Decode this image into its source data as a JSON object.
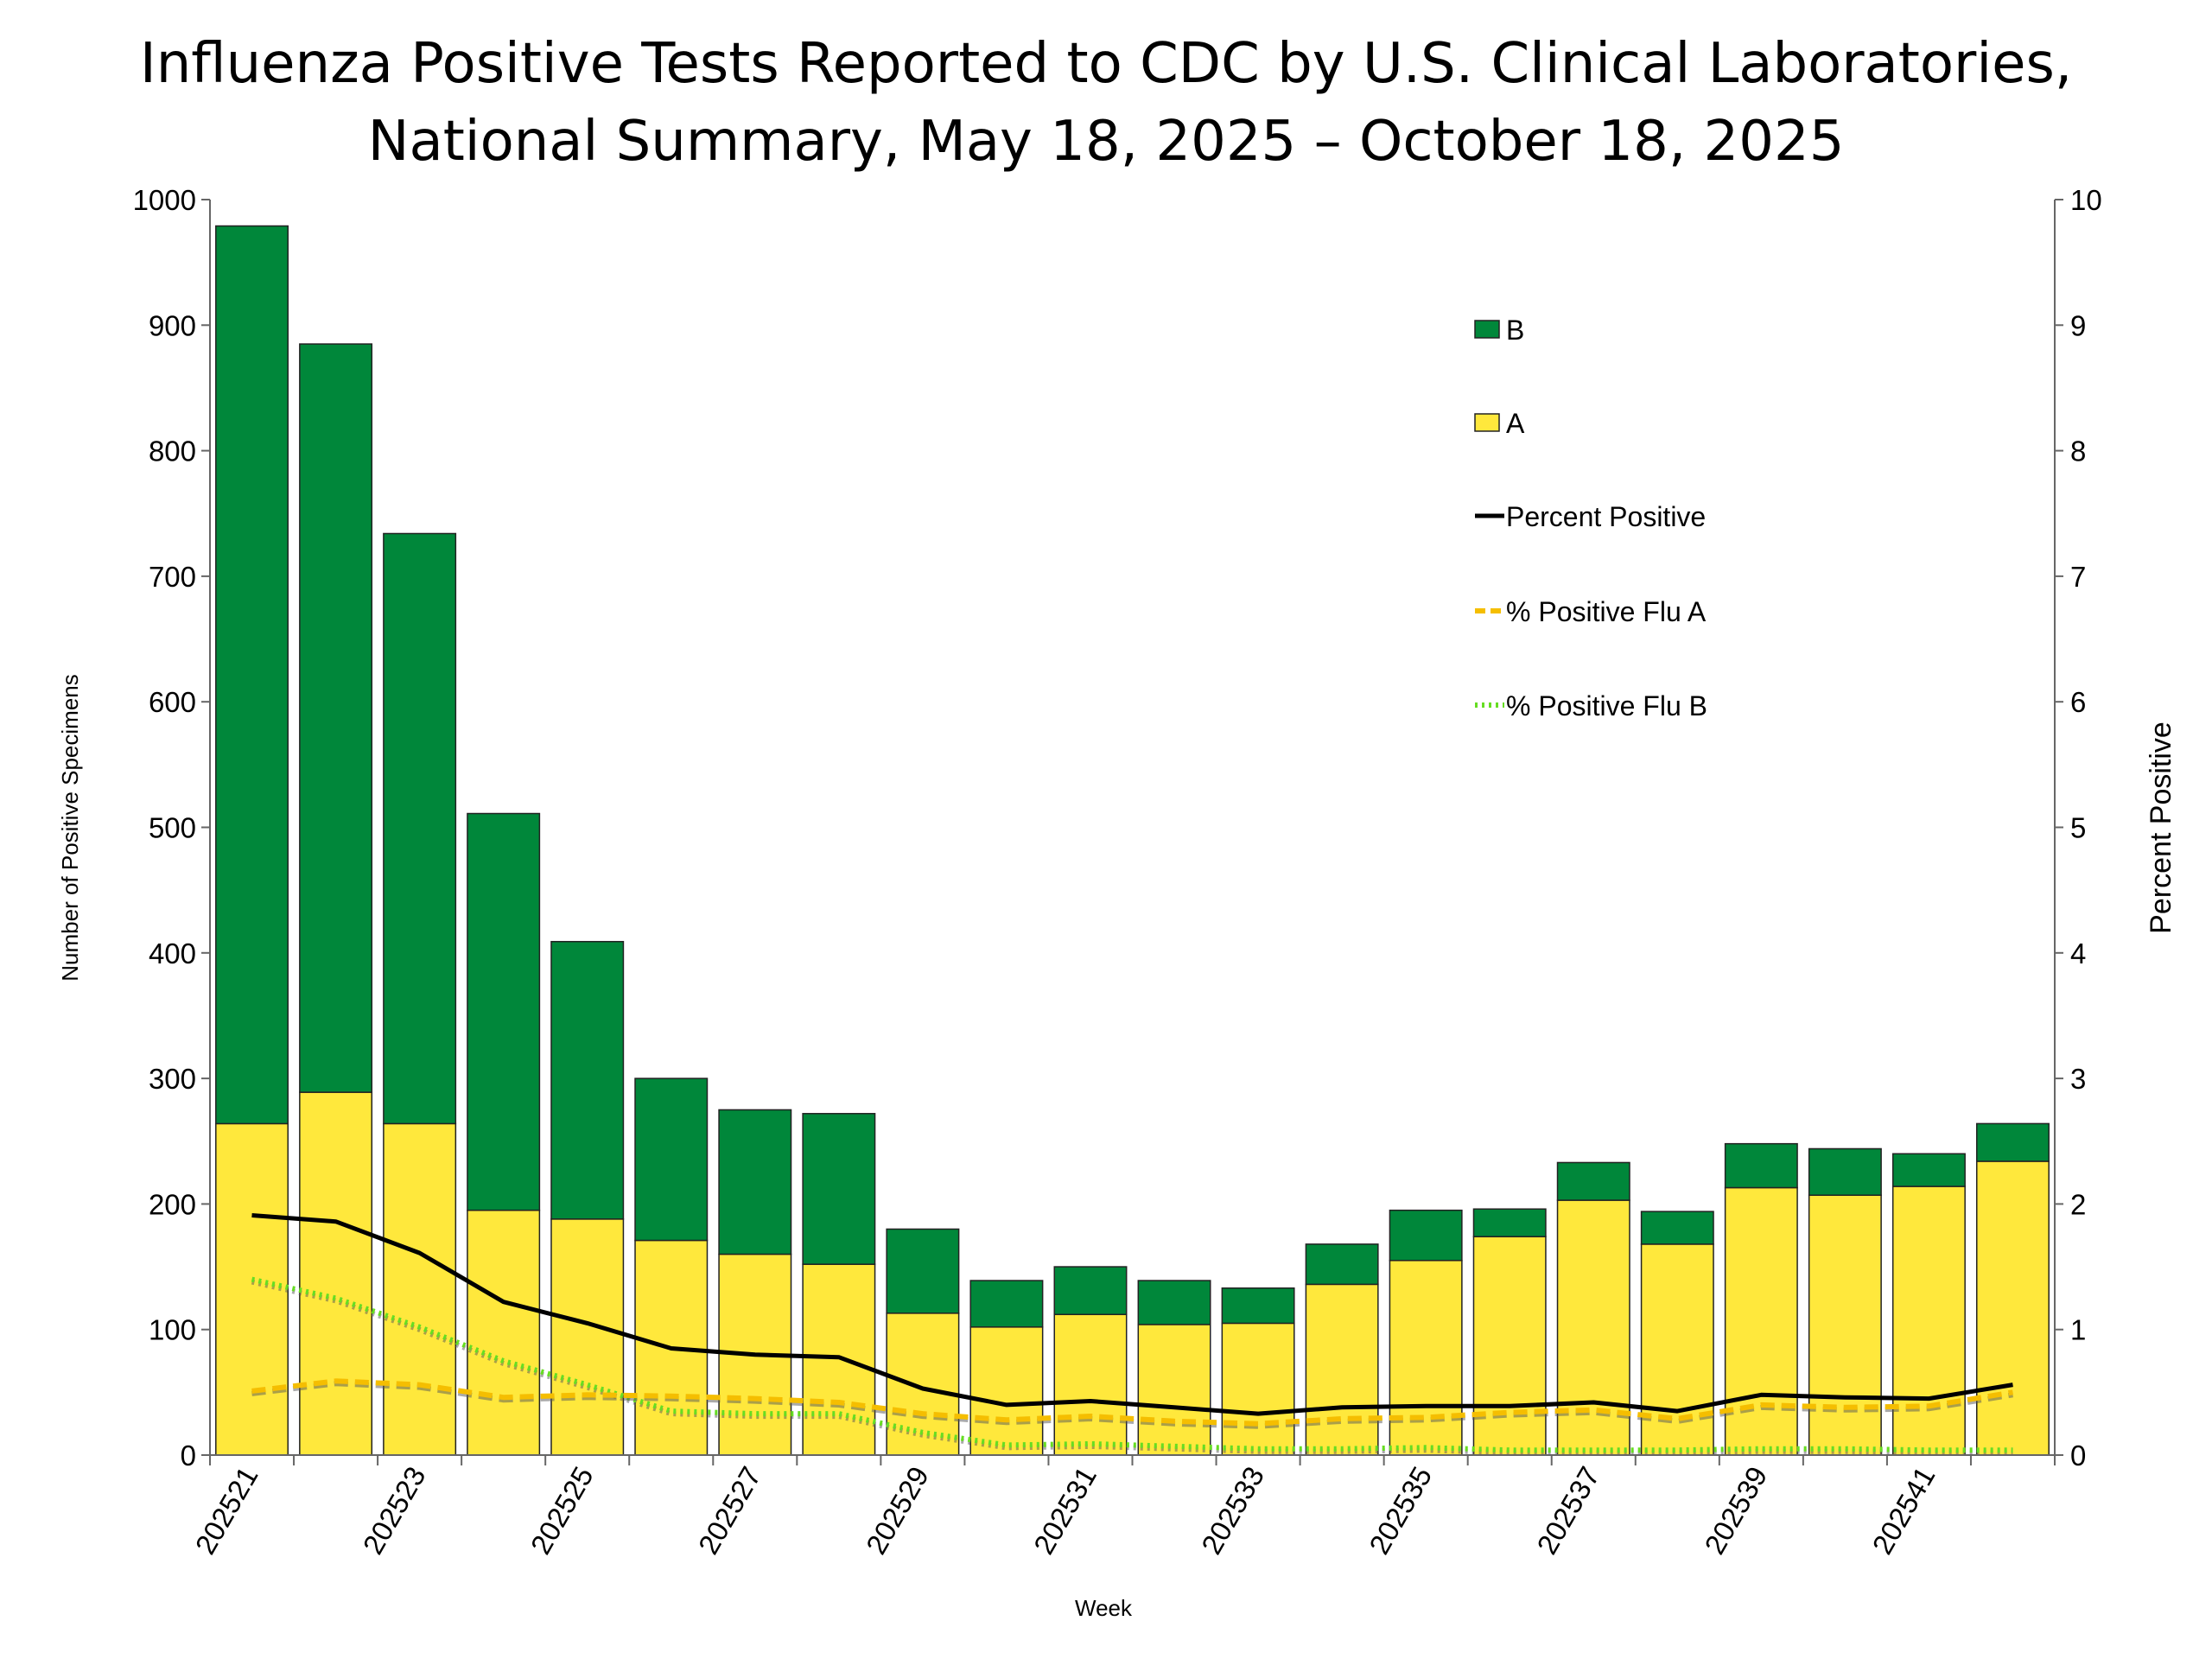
{
  "chart_data": {
    "type": "bar",
    "title": [
      "Influenza Positive Tests Reported to CDC by U.S. Clinical Laboratories,",
      "National Summary, May 18, 2025 – October 18, 2025"
    ],
    "xlabel": "Week",
    "ylabel": "Number of Positive Specimens",
    "y2label": "Percent Positive",
    "ylim": [
      0,
      1000
    ],
    "y2lim": [
      0,
      10
    ],
    "yticks": [
      0,
      100,
      200,
      300,
      400,
      500,
      600,
      700,
      800,
      900,
      1000
    ],
    "y2ticks": [
      0,
      1,
      2,
      3,
      4,
      5,
      6,
      7,
      8,
      9,
      10
    ],
    "grid": false,
    "legend_placement": "top-right",
    "categories": [
      "202521",
      "202522",
      "202523",
      "202524",
      "202525",
      "202526",
      "202527",
      "202528",
      "202529",
      "202530",
      "202531",
      "202532",
      "202533",
      "202534",
      "202535",
      "202536",
      "202537",
      "202538",
      "202539",
      "202540",
      "202541",
      "202542"
    ],
    "x_tick_labels": [
      "202521",
      "202523",
      "202525",
      "202527",
      "202529",
      "202531",
      "202533",
      "202535",
      "202537",
      "202539",
      "202541"
    ],
    "stacked_bars": [
      {
        "name": "A",
        "color": "#FFE83C",
        "values": [
          264,
          289,
          264,
          195,
          188,
          171,
          160,
          152,
          113,
          102,
          112,
          104,
          105,
          136,
          155,
          174,
          203,
          168,
          213,
          207,
          214,
          234
        ]
      },
      {
        "name": "B",
        "color": "#00873A",
        "values": [
          715,
          596,
          470,
          316,
          221,
          129,
          115,
          120,
          67,
          37,
          38,
          35,
          28,
          32,
          40,
          22,
          30,
          26,
          35,
          37,
          26,
          30
        ]
      }
    ],
    "lines": [
      {
        "name": "Percent Positive",
        "axis": "right",
        "color": "#000000",
        "style": "solid",
        "values": [
          1.91,
          1.86,
          1.61,
          1.22,
          1.05,
          0.85,
          0.8,
          0.78,
          0.53,
          0.4,
          0.43,
          0.38,
          0.33,
          0.38,
          0.39,
          0.39,
          0.42,
          0.35,
          0.48,
          0.46,
          0.45,
          0.56
        ]
      },
      {
        "name": "% Positive Flu A",
        "axis": "right",
        "color": "#F5BE00",
        "style": "dashed",
        "values": [
          0.51,
          0.59,
          0.56,
          0.46,
          0.48,
          0.47,
          0.45,
          0.42,
          0.33,
          0.28,
          0.31,
          0.27,
          0.25,
          0.29,
          0.3,
          0.34,
          0.36,
          0.29,
          0.4,
          0.38,
          0.39,
          0.5
        ]
      },
      {
        "name": "% Positive Flu B",
        "axis": "right",
        "color": "#66DD22",
        "style": "dotted",
        "values": [
          1.4,
          1.25,
          1.02,
          0.75,
          0.56,
          0.35,
          0.33,
          0.33,
          0.18,
          0.08,
          0.09,
          0.07,
          0.05,
          0.05,
          0.06,
          0.04,
          0.04,
          0.04,
          0.05,
          0.05,
          0.04,
          0.04
        ]
      }
    ],
    "legend": [
      "B",
      "A",
      "Percent Positive",
      "% Positive Flu A",
      "% Positive Flu B"
    ]
  }
}
